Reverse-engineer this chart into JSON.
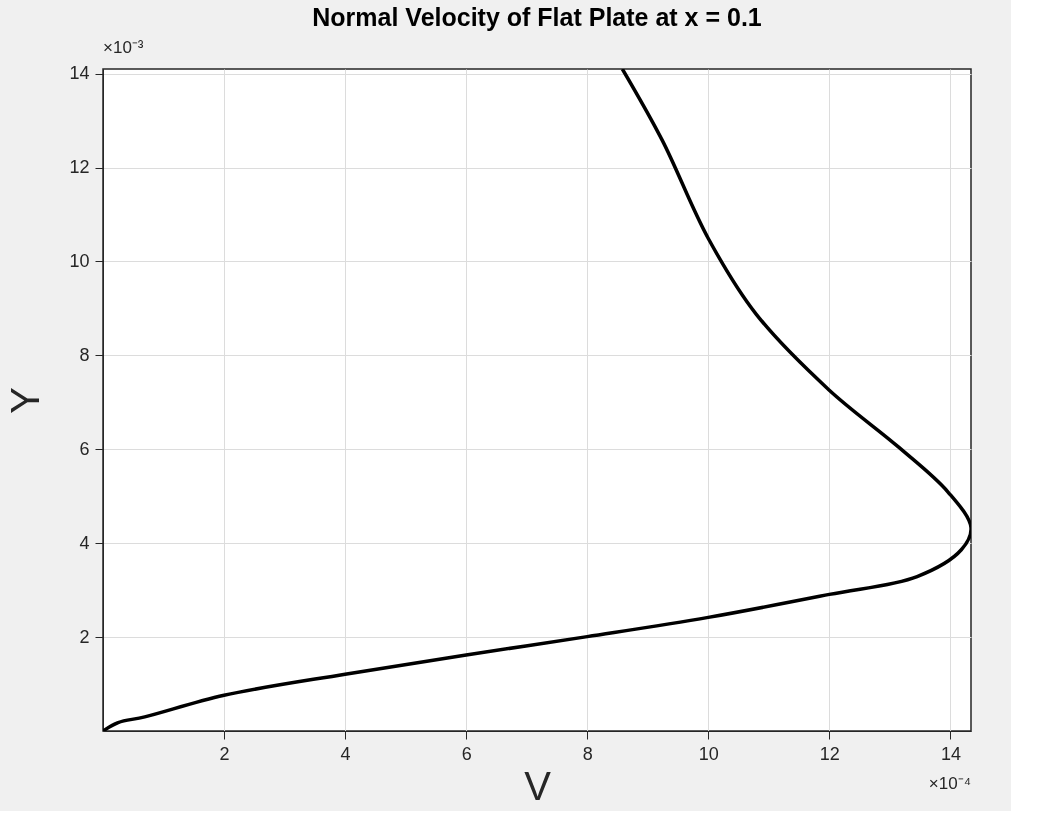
{
  "chart_data": {
    "type": "line",
    "title": "Normal Velocity of Flat Plate at x = 0.1",
    "xlabel": "V",
    "ylabel": "Y",
    "annotations": [
      "×10⁻³",
      "×10⁻⁴"
    ],
    "series": [
      {
        "color": "#000000",
        "x": [
          0,
          0.25,
          0.69,
          2.0,
          4.0,
          6.0,
          8.0,
          10.0,
          12.0,
          13.45,
          14.18,
          14.34,
          13.96,
          13.15,
          11.99,
          10.79,
          10.0,
          9.24,
          8.58
        ],
        "values": [
          0,
          0.18,
          0.3,
          0.76,
          1.21,
          1.62,
          2.01,
          2.42,
          2.91,
          3.29,
          3.86,
          4.33,
          5.09,
          6.04,
          7.27,
          8.88,
          10.49,
          12.58,
          14.1
        ]
      }
    ],
    "xlim": [
      0,
      14.34
    ],
    "ylim": [
      0,
      14.1
    ],
    "xticks": [
      2,
      4,
      6,
      8,
      10,
      12,
      14
    ],
    "yticks": [
      2,
      4,
      6,
      8,
      10,
      12,
      14
    ],
    "grid": true,
    "marker": "none",
    "line_style": "solid"
  }
}
